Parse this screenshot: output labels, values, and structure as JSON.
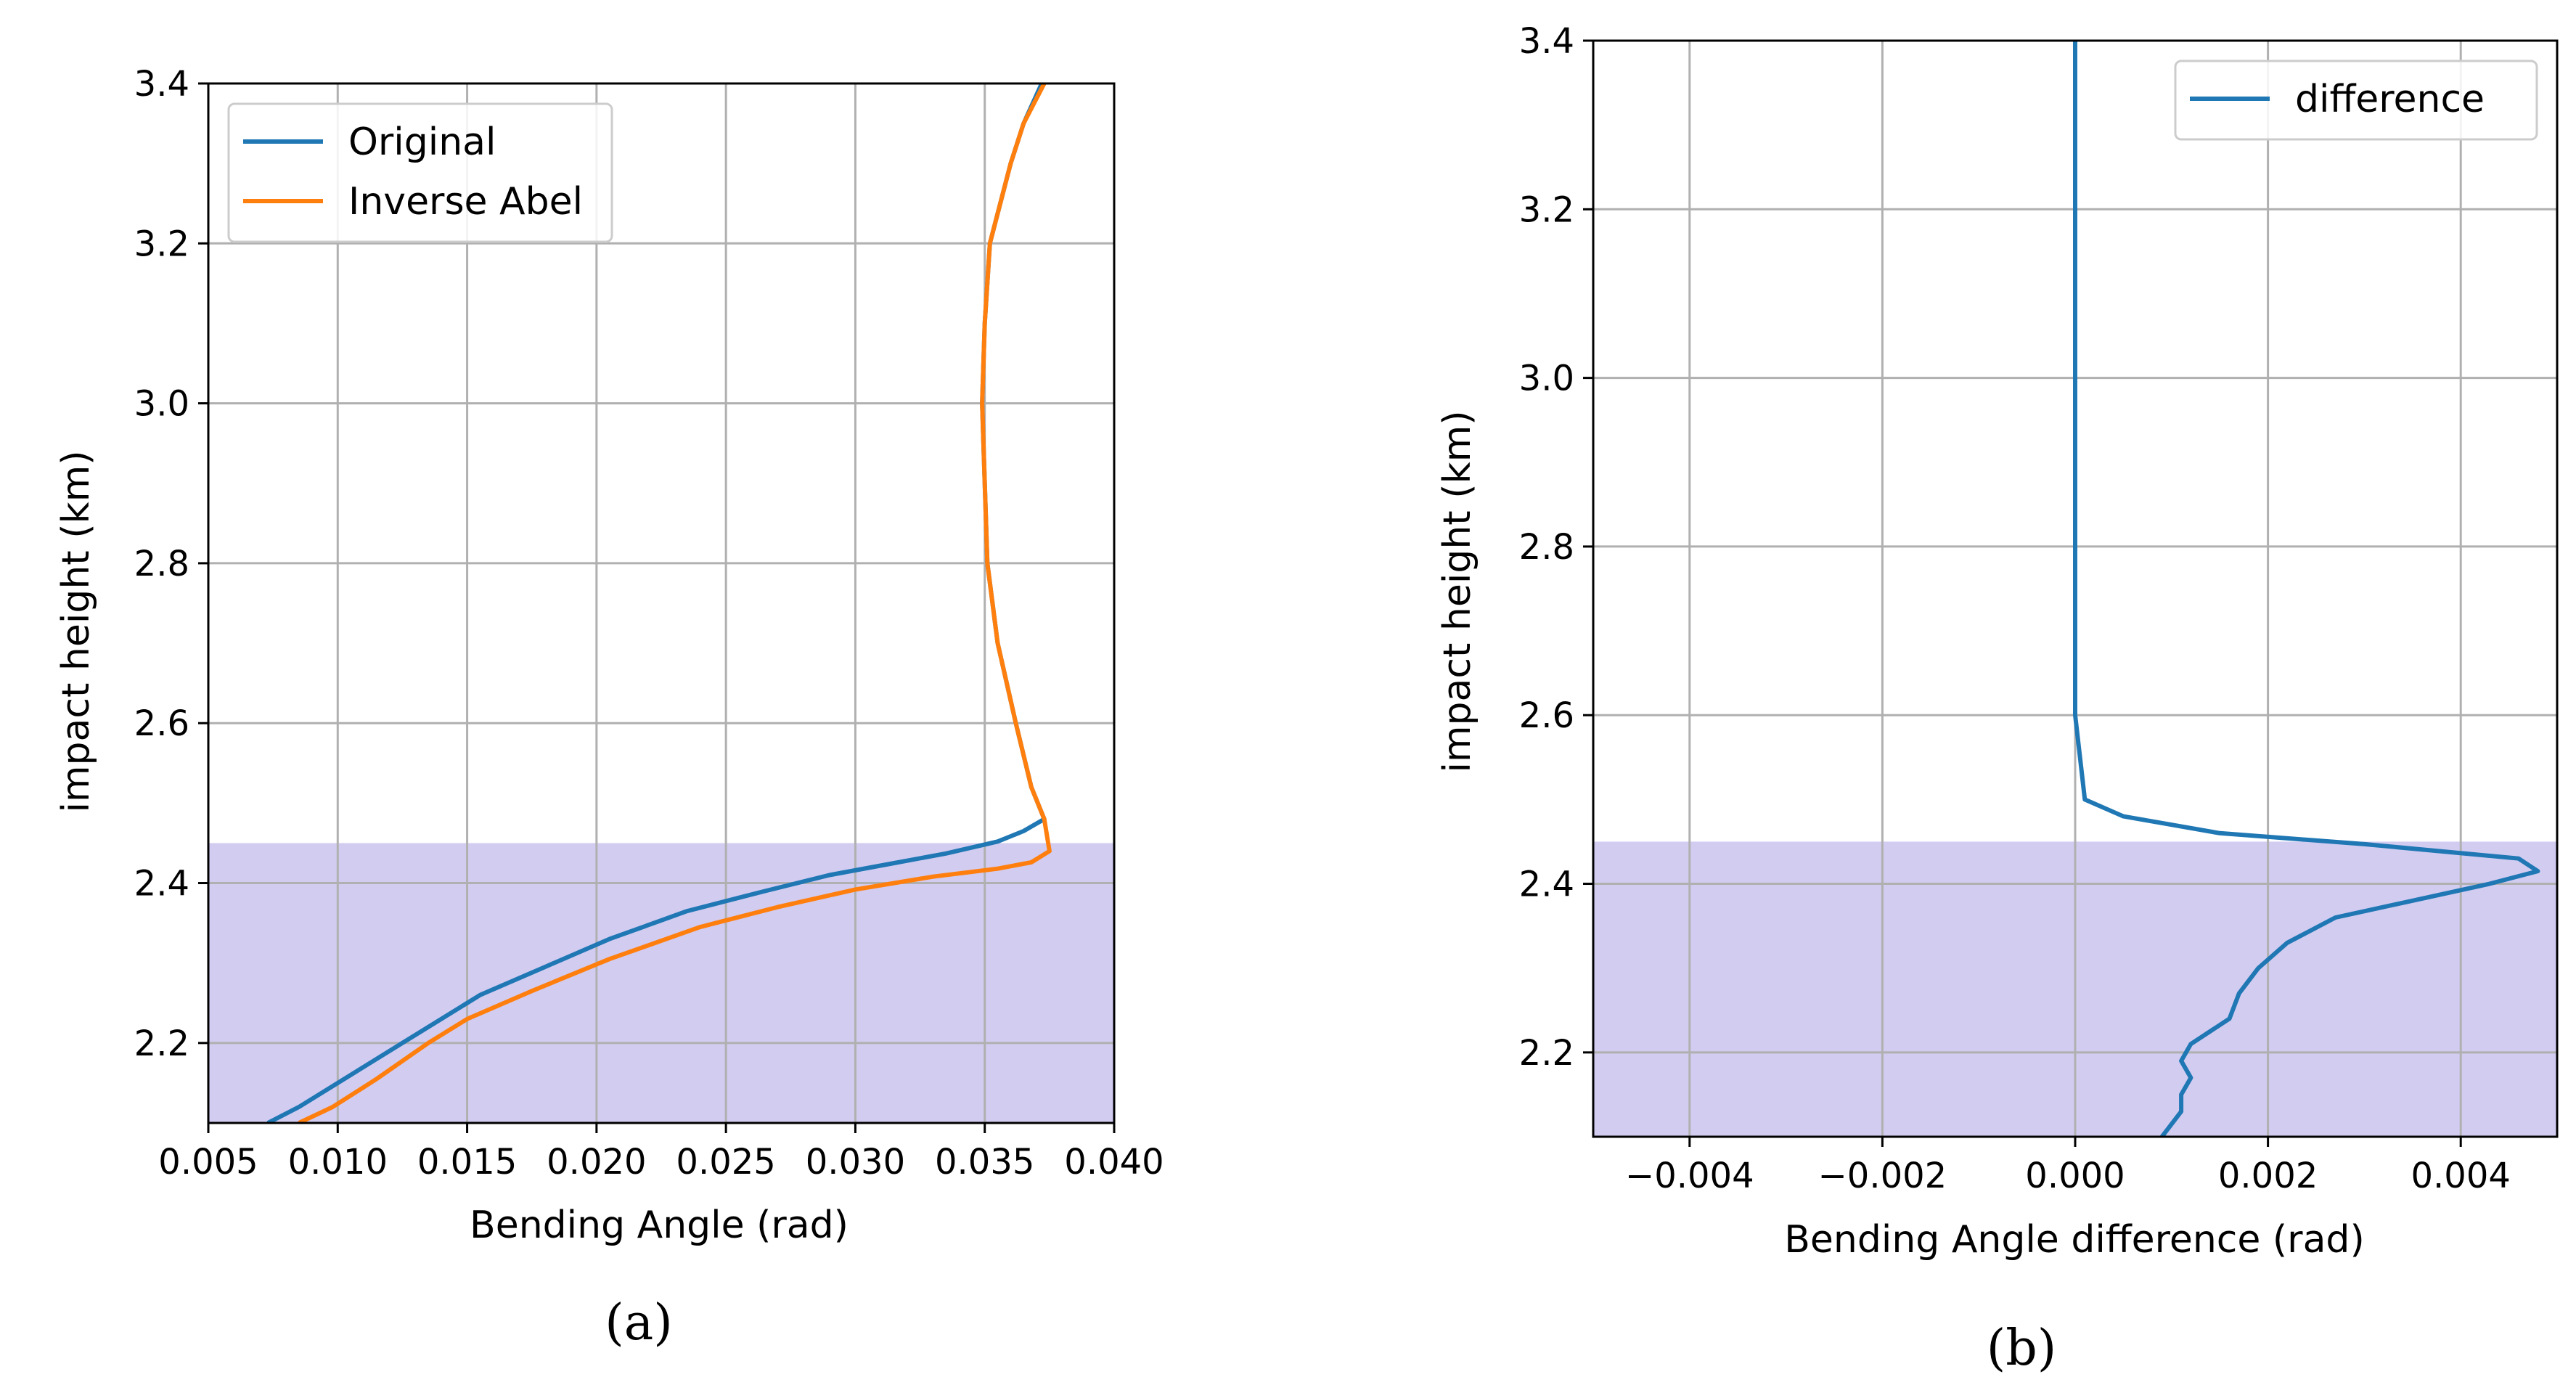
{
  "chart_data": [
    {
      "type": "line",
      "panel_label": "a",
      "xlabel": "Bending Angle (rad)",
      "ylabel": "impact height (km)",
      "xlim": [
        0.005,
        0.04
      ],
      "ylim": [
        2.1,
        3.4
      ],
      "xticks": [
        "0.005",
        "0.010",
        "0.015",
        "0.020",
        "0.025",
        "0.030",
        "0.035",
        "0.040"
      ],
      "xtick_values": [
        0.005,
        0.01,
        0.015,
        0.02,
        0.025,
        0.03,
        0.035,
        0.04
      ],
      "yticks": [
        "2.2",
        "2.4",
        "2.6",
        "2.8",
        "3.0",
        "3.2",
        "3.4"
      ],
      "ytick_values": [
        2.2,
        2.4,
        2.6,
        2.8,
        3.0,
        3.2,
        3.4
      ],
      "grid": true,
      "legend_position": "top-left",
      "shaded_region": {
        "y_from": 2.1,
        "y_to": 2.45,
        "color": "#9c8fe0"
      },
      "series": [
        {
          "name": "Original",
          "color": "#1f77b4",
          "points": [
            [
              0.0073,
              2.1
            ],
            [
              0.0085,
              2.12
            ],
            [
              0.0105,
              2.16
            ],
            [
              0.0125,
              2.2
            ],
            [
              0.014,
              2.23
            ],
            [
              0.0155,
              2.26
            ],
            [
              0.018,
              2.295
            ],
            [
              0.0205,
              2.33
            ],
            [
              0.0235,
              2.365
            ],
            [
              0.0265,
              2.39
            ],
            [
              0.029,
              2.41
            ],
            [
              0.0315,
              2.425
            ],
            [
              0.0335,
              2.437
            ],
            [
              0.0355,
              2.452
            ],
            [
              0.0365,
              2.465
            ],
            [
              0.0373,
              2.48
            ],
            [
              0.0368,
              2.52
            ],
            [
              0.0362,
              2.6
            ],
            [
              0.0355,
              2.7
            ],
            [
              0.0351,
              2.8
            ],
            [
              0.035,
              2.9
            ],
            [
              0.0349,
              3.0
            ],
            [
              0.035,
              3.1
            ],
            [
              0.0352,
              3.2
            ],
            [
              0.036,
              3.3
            ],
            [
              0.0365,
              3.35
            ],
            [
              0.0372,
              3.4
            ]
          ]
        },
        {
          "name": "Inverse Abel",
          "color": "#ff7f0e",
          "points": [
            [
              0.0085,
              2.1
            ],
            [
              0.0098,
              2.12
            ],
            [
              0.0115,
              2.155
            ],
            [
              0.0135,
              2.2
            ],
            [
              0.015,
              2.23
            ],
            [
              0.0175,
              2.265
            ],
            [
              0.0205,
              2.305
            ],
            [
              0.024,
              2.345
            ],
            [
              0.027,
              2.37
            ],
            [
              0.03,
              2.392
            ],
            [
              0.033,
              2.408
            ],
            [
              0.0355,
              2.418
            ],
            [
              0.0368,
              2.426
            ],
            [
              0.0375,
              2.44
            ],
            [
              0.0373,
              2.48
            ],
            [
              0.0368,
              2.52
            ],
            [
              0.0362,
              2.6
            ],
            [
              0.0355,
              2.7
            ],
            [
              0.0351,
              2.8
            ],
            [
              0.035,
              2.9
            ],
            [
              0.0349,
              3.0
            ],
            [
              0.035,
              3.1
            ],
            [
              0.0352,
              3.2
            ],
            [
              0.036,
              3.3
            ],
            [
              0.0365,
              3.35
            ],
            [
              0.0373,
              3.4
            ]
          ]
        }
      ]
    },
    {
      "type": "line",
      "panel_label": "b",
      "xlabel": "Bending Angle difference (rad)",
      "ylabel": "impact height (km)",
      "xlim": [
        -0.005,
        0.005
      ],
      "ylim": [
        2.1,
        3.4
      ],
      "xticks": [
        "−0.004",
        "−0.002",
        "0.000",
        "0.002",
        "0.004"
      ],
      "xtick_values": [
        -0.004,
        -0.002,
        0.0,
        0.002,
        0.004
      ],
      "yticks": [
        "2.2",
        "2.4",
        "2.6",
        "2.8",
        "3.0",
        "3.2",
        "3.4"
      ],
      "ytick_values": [
        2.2,
        2.4,
        2.6,
        2.8,
        3.0,
        3.2,
        3.4
      ],
      "grid": true,
      "legend_position": "top-right",
      "shaded_region": {
        "y_from": 2.1,
        "y_to": 2.45,
        "color": "#9c8fe0"
      },
      "series": [
        {
          "name": "difference",
          "color": "#1f77b4",
          "points": [
            [
              0.0009,
              2.1
            ],
            [
              0.0011,
              2.13
            ],
            [
              0.0011,
              2.15
            ],
            [
              0.0012,
              2.17
            ],
            [
              0.0011,
              2.19
            ],
            [
              0.0012,
              2.21
            ],
            [
              0.0016,
              2.24
            ],
            [
              0.0017,
              2.27
            ],
            [
              0.0019,
              2.3
            ],
            [
              0.0022,
              2.33
            ],
            [
              0.0027,
              2.36
            ],
            [
              0.0035,
              2.38
            ],
            [
              0.0043,
              2.4
            ],
            [
              0.0048,
              2.415
            ],
            [
              0.0046,
              2.43
            ],
            [
              0.003,
              2.447
            ],
            [
              0.0015,
              2.46
            ],
            [
              0.0005,
              2.48
            ],
            [
              0.0001,
              2.5
            ],
            [
              0.0,
              2.6
            ],
            [
              0.0,
              2.8
            ],
            [
              0.0,
              3.0
            ],
            [
              0.0,
              3.2
            ],
            [
              0.0,
              3.3
            ],
            [
              0.0,
              3.4
            ]
          ]
        }
      ]
    }
  ],
  "captions": {
    "a": "(a)",
    "b": "(b)"
  }
}
